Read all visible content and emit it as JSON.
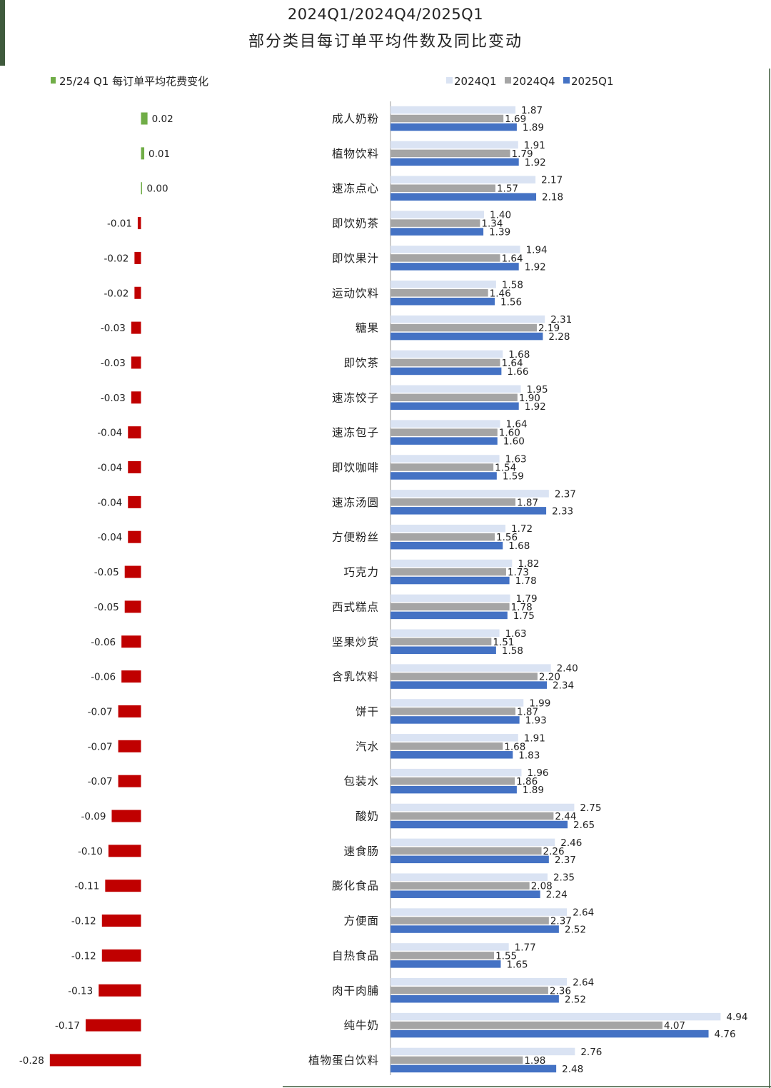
{
  "title_line1": "2024Q1/2024Q4/2025Q1",
  "title_line2": "部分类目每订单平均件数及同比变动",
  "chart_data": [
    {
      "type": "bar",
      "orientation": "horizontal",
      "legend": [
        "25/24 Q1 每订单平均花费变化"
      ],
      "legend_placement": "top-left",
      "categories": [
        "成人奶粉",
        "植物饮料",
        "速冻点心",
        "即饮奶茶",
        "即饮果汁",
        "运动饮料",
        "糖果",
        "即饮茶",
        "速冻饺子",
        "速冻包子",
        "即饮咖啡",
        "速冻汤圆",
        "方便粉丝",
        "巧克力",
        "西式糕点",
        "坚果炒货",
        "含乳饮料",
        "饼干",
        "汽水",
        "包装水",
        "酸奶",
        "速食肠",
        "膨化食品",
        "方便面",
        "自热食品",
        "肉干肉脯",
        "纯牛奶",
        "植物蛋白饮料"
      ],
      "values": [
        0.02,
        0.01,
        0.0,
        -0.01,
        -0.02,
        -0.02,
        -0.03,
        -0.03,
        -0.03,
        -0.04,
        -0.04,
        -0.04,
        -0.04,
        -0.05,
        -0.05,
        -0.06,
        -0.06,
        -0.07,
        -0.07,
        -0.07,
        -0.09,
        -0.1,
        -0.11,
        -0.12,
        -0.12,
        -0.13,
        -0.17,
        -0.28
      ],
      "labels": [
        "0.02",
        "0.01",
        "0.00",
        "-0.01",
        "-0.02",
        "-0.02",
        "-0.03",
        "-0.03",
        "-0.03",
        "-0.04",
        "-0.04",
        "-0.04",
        "-0.04",
        "-0.05",
        "-0.05",
        "-0.06",
        "-0.06",
        "-0.07",
        "-0.07",
        "-0.07",
        "-0.09",
        "-0.10",
        "-0.11",
        "-0.12",
        "-0.12",
        "-0.13",
        "-0.17",
        "-0.28"
      ],
      "colors": {
        "positive": "#70ad47",
        "negative": "#c00000"
      }
    },
    {
      "type": "bar",
      "orientation": "horizontal",
      "legend_placement": "top-right",
      "categories": [
        "成人奶粉",
        "植物饮料",
        "速冻点心",
        "即饮奶茶",
        "即饮果汁",
        "运动饮料",
        "糖果",
        "即饮茶",
        "速冻饺子",
        "速冻包子",
        "即饮咖啡",
        "速冻汤圆",
        "方便粉丝",
        "巧克力",
        "西式糕点",
        "坚果炒货",
        "含乳饮料",
        "饼干",
        "汽水",
        "包装水",
        "酸奶",
        "速食肠",
        "膨化食品",
        "方便面",
        "自热食品",
        "肉干肉脯",
        "纯牛奶",
        "植物蛋白饮料"
      ],
      "series": [
        {
          "name": "2024Q1",
          "color": "#dae3f3",
          "values": [
            1.87,
            1.91,
            2.17,
            1.4,
            1.94,
            1.58,
            2.31,
            1.68,
            1.95,
            1.64,
            1.63,
            2.37,
            1.72,
            1.82,
            1.79,
            1.63,
            2.4,
            1.99,
            1.91,
            1.96,
            2.75,
            2.46,
            2.35,
            2.64,
            1.77,
            2.64,
            4.94,
            2.76
          ]
        },
        {
          "name": "2024Q4",
          "color": "#a5a5a5",
          "values": [
            1.69,
            1.79,
            1.57,
            1.34,
            1.64,
            1.46,
            2.19,
            1.64,
            1.9,
            1.6,
            1.54,
            1.87,
            1.56,
            1.73,
            1.78,
            1.51,
            2.2,
            1.87,
            1.68,
            1.86,
            2.44,
            2.26,
            2.08,
            2.37,
            1.55,
            2.36,
            4.07,
            1.98
          ]
        },
        {
          "name": "2025Q1",
          "color": "#4472c4",
          "values": [
            1.89,
            1.92,
            2.18,
            1.39,
            1.92,
            1.56,
            2.28,
            1.66,
            1.92,
            1.6,
            1.59,
            2.33,
            1.68,
            1.78,
            1.75,
            1.58,
            2.34,
            1.93,
            1.83,
            1.89,
            2.65,
            2.37,
            2.24,
            2.52,
            1.65,
            2.52,
            4.76,
            2.48
          ]
        }
      ],
      "xlim": [
        0,
        5
      ]
    }
  ]
}
